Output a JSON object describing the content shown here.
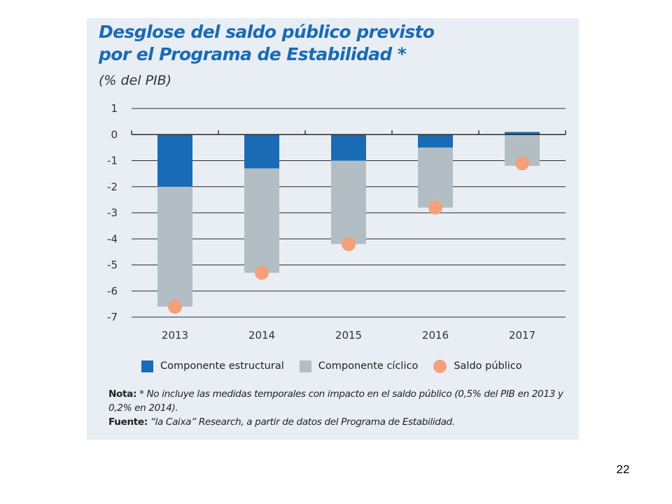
{
  "slide": {
    "title_line1": "Desglose del saldo público previsto",
    "title_line2": "por el Programa de Estabilidad *",
    "subtitle": "(% del PIB)",
    "page_number": "22"
  },
  "legend": {
    "structural": "Componente estructural",
    "cyclical": "Componente cíclico",
    "balance": "Saldo público"
  },
  "notes": {
    "note_label": "Nota:",
    "note_text": " * No incluye las medidas temporales con impacto en el saldo público (0,5% del PIB en 2013 y 0,2% en 2014).",
    "source_label": "Fuente:",
    "source_text": " “la Caixa” Research, a partir de datos del Programa de Estabilidad."
  },
  "colors": {
    "structural": "#1a6bb5",
    "cyclical": "#b3bec4",
    "balance": "#f4a07a",
    "title": "#1a6bb5"
  },
  "chart_data": {
    "type": "bar",
    "stacked": true,
    "categories": [
      "2013",
      "2014",
      "2015",
      "2016",
      "2017"
    ],
    "series": [
      {
        "name": "Componente estructural",
        "values": [
          -2.0,
          -1.3,
          -1.0,
          -0.5,
          0.1
        ]
      },
      {
        "name": "Componente cíclico",
        "values": [
          -4.6,
          -4.0,
          -3.2,
          -2.3,
          -1.2
        ]
      },
      {
        "name": "Saldo público",
        "type": "scatter",
        "values": [
          -6.6,
          -5.3,
          -4.2,
          -2.8,
          -1.1
        ]
      }
    ],
    "title": "Desglose del saldo público previsto por el Programa de Estabilidad *",
    "ylabel": "(% del PIB)",
    "ylim": [
      -7,
      1
    ],
    "yticks": [
      1,
      0,
      -1,
      -2,
      -3,
      -4,
      -5,
      -6,
      -7
    ],
    "grid": true,
    "legend_position": "bottom"
  }
}
